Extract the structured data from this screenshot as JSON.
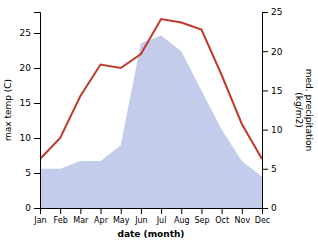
{
  "chart_data": {
    "type": "line",
    "xlabel": "date (month)",
    "ylabel": "max temp (C)",
    "y2label": "med. precipitation\n(kg/m2)",
    "categories": [
      "Jan",
      "Feb",
      "Mar",
      "Apr",
      "May",
      "Jun",
      "Jul",
      "Aug",
      "Sep",
      "Oct",
      "Nov",
      "Dec"
    ],
    "series": [
      {
        "type": "area",
        "axis": "y2",
        "color": "#b8c4e8",
        "values": [
          5.0,
          5.0,
          6.0,
          6.0,
          8.0,
          21.0,
          22.0,
          20.0,
          15.0,
          10.0,
          6.0,
          4.0
        ]
      },
      {
        "type": "line",
        "color": "#c0392b",
        "values": [
          7.0,
          10.0,
          16.0,
          20.5,
          20.0,
          22.0,
          27.0,
          26.5,
          25.5,
          19.0,
          12.0,
          7.0
        ]
      }
    ],
    "ylim": [
      0,
      28
    ],
    "yticks": [
      0,
      5,
      10,
      15,
      20,
      25
    ],
    "y2lim": [
      0,
      25
    ],
    "y2ticks": [
      0,
      5,
      10,
      15,
      20,
      25
    ]
  }
}
